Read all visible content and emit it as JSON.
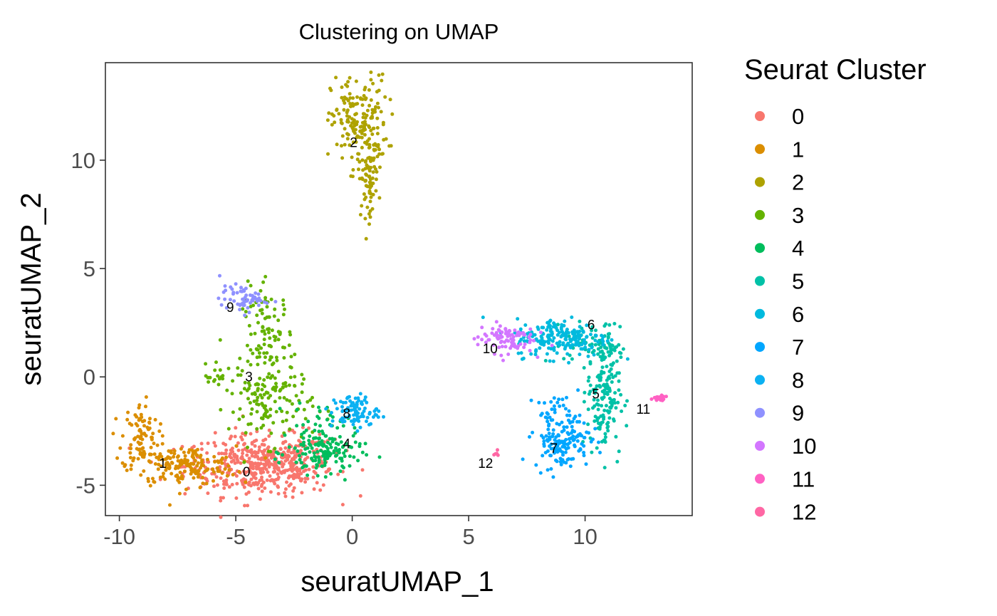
{
  "chart_data": {
    "type": "scatter",
    "title": "Clustering on UMAP",
    "xlabel": "seuratUMAP_1",
    "ylabel": "seuratUMAP_2",
    "xlim": [
      -10.6,
      14.6
    ],
    "ylim": [
      -6.4,
      14.5
    ],
    "x_ticks": [
      -10,
      -5,
      0,
      5,
      10
    ],
    "y_ticks": [
      -5,
      0,
      5,
      10
    ],
    "x_tick_labels": [
      "-10",
      "-5",
      "0",
      "5",
      "10"
    ],
    "y_tick_labels": [
      "-5",
      "0",
      "5",
      "10"
    ],
    "grid": false,
    "legend": {
      "title": "Seurat Cluster",
      "position": "right"
    },
    "series": [
      {
        "name": "0",
        "color": "#F8766D",
        "label_pos": [
          -4.7,
          -4.6
        ],
        "regions": [
          {
            "n": 420,
            "cx": -4.0,
            "cy": -4.1,
            "sx": 1.6,
            "sy": 0.7
          },
          {
            "n": 80,
            "cx": -2.4,
            "cy": -3.8,
            "sx": 0.9,
            "sy": 0.6
          }
        ]
      },
      {
        "name": "1",
        "color": "#DB8E00",
        "label_pos": [
          -8.3,
          -4.2
        ],
        "regions": [
          {
            "n": 170,
            "cx": -7.2,
            "cy": -4.1,
            "sx": 1.1,
            "sy": 0.45
          },
          {
            "n": 90,
            "cx": -9.1,
            "cy": -2.8,
            "sx": 0.4,
            "sy": 0.8
          }
        ]
      },
      {
        "name": "2",
        "color": "#AEA200",
        "label_pos": [
          -0.1,
          10.6
        ],
        "regions": [
          {
            "n": 180,
            "cx": 0.3,
            "cy": 11.7,
            "sx": 0.6,
            "sy": 1.1
          },
          {
            "n": 70,
            "cx": 0.7,
            "cy": 9.2,
            "sx": 0.22,
            "sy": 0.9
          }
        ]
      },
      {
        "name": "3",
        "color": "#64B200",
        "label_pos": [
          -4.6,
          -0.2
        ],
        "regions": [
          {
            "n": 120,
            "cx": -3.6,
            "cy": 1.5,
            "sx": 0.55,
            "sy": 1.3
          },
          {
            "n": 110,
            "cx": -3.5,
            "cy": -1.3,
            "sx": 0.9,
            "sy": 0.9
          },
          {
            "n": 25,
            "cx": -5.6,
            "cy": 0.0,
            "sx": 0.6,
            "sy": 0.25
          }
        ]
      },
      {
        "name": "4",
        "color": "#00BD5C",
        "label_pos": [
          -0.4,
          -3.3
        ],
        "regions": [
          {
            "n": 140,
            "cx": -1.2,
            "cy": -3.5,
            "sx": 0.8,
            "sy": 0.5
          },
          {
            "n": 30,
            "cx": -1.3,
            "cy": -2.1,
            "sx": 0.6,
            "sy": 0.5
          }
        ]
      },
      {
        "name": "5",
        "color": "#00C1A7",
        "label_pos": [
          10.3,
          -1.0
        ],
        "regions": [
          {
            "n": 170,
            "cx": 10.8,
            "cy": -0.7,
            "sx": 0.35,
            "sy": 1.5
          },
          {
            "n": 50,
            "cx": 10.3,
            "cy": 1.5,
            "sx": 0.6,
            "sy": 0.5
          }
        ]
      },
      {
        "name": "6",
        "color": "#00BADE",
        "label_pos": [
          10.1,
          2.2
        ],
        "regions": [
          {
            "n": 190,
            "cx": 9.0,
            "cy": 1.8,
            "sx": 1.0,
            "sy": 0.45
          }
        ]
      },
      {
        "name": "7",
        "color": "#00A6FF",
        "label_pos": [
          8.5,
          -3.5
        ],
        "regions": [
          {
            "n": 130,
            "cx": 9.0,
            "cy": -3.0,
            "sx": 0.6,
            "sy": 0.6
          },
          {
            "n": 40,
            "cx": 8.9,
            "cy": -1.7,
            "sx": 0.5,
            "sy": 0.4
          }
        ]
      },
      {
        "name": "8",
        "color": "#0BB1F2",
        "label_pos": [
          -0.4,
          -1.9
        ],
        "regions": [
          {
            "n": 90,
            "cx": 0.1,
            "cy": -1.6,
            "sx": 0.5,
            "sy": 0.4
          }
        ]
      },
      {
        "name": "9",
        "color": "#8F91FF",
        "label_pos": [
          -5.4,
          3.0
        ],
        "regions": [
          {
            "n": 60,
            "cx": -4.7,
            "cy": 3.6,
            "sx": 0.5,
            "sy": 0.3
          }
        ]
      },
      {
        "name": "10",
        "color": "#D376FF",
        "label_pos": [
          5.6,
          1.1
        ],
        "regions": [
          {
            "n": 90,
            "cx": 6.6,
            "cy": 1.8,
            "sx": 0.6,
            "sy": 0.35
          }
        ]
      },
      {
        "name": "11",
        "color": "#FF61C3",
        "label_pos": [
          12.2,
          -1.7
        ],
        "regions": [
          {
            "n": 25,
            "cx": 13.2,
            "cy": -1.0,
            "sx": 0.2,
            "sy": 0.08
          }
        ]
      },
      {
        "name": "12",
        "color": "#FF67A4",
        "label_pos": [
          5.4,
          -4.2
        ],
        "regions": [
          {
            "n": 5,
            "cx": 6.2,
            "cy": -3.55,
            "sx": 0.1,
            "sy": 0.05
          }
        ]
      }
    ]
  }
}
